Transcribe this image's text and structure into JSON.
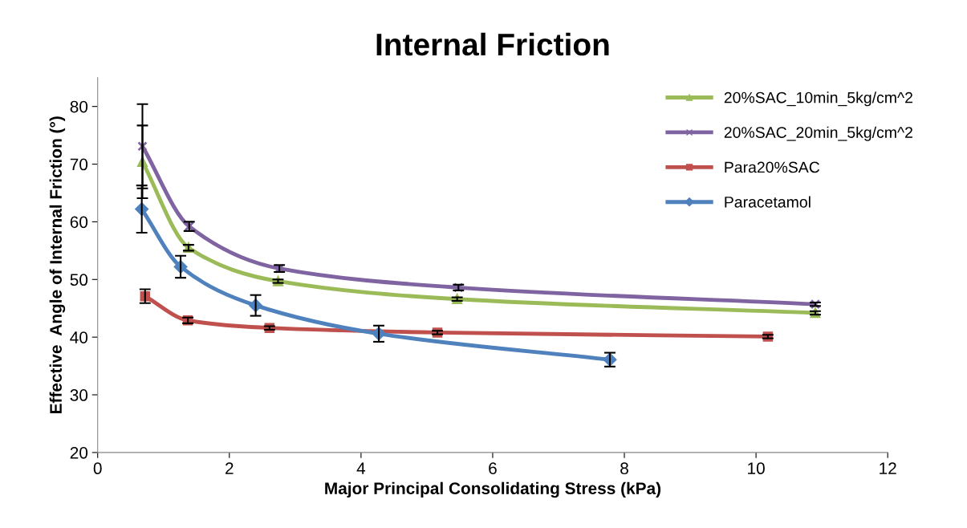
{
  "chart_data": {
    "type": "line",
    "title": "Internal Friction",
    "xlabel": "Major Principal Consolidating Stress (kPa)",
    "ylabel": "Effective  Angle of Internal Friction (°)",
    "xlim": [
      0,
      12
    ],
    "xticks": [
      0,
      2,
      4,
      6,
      8,
      10,
      12
    ],
    "ylim": [
      20,
      85
    ],
    "yticks": [
      20,
      30,
      40,
      50,
      60,
      70,
      80
    ],
    "grid": false,
    "legend": "top right",
    "line_style": "solid",
    "series": [
      {
        "name": "20%SAC_10min_5kg/cm^2",
        "color": "#9bbb59",
        "marker": "triangle",
        "x": [
          0.68,
          1.38,
          2.74,
          5.46,
          10.9
        ],
        "values": [
          70.4,
          55.5,
          49.7,
          46.6,
          44.2
        ],
        "errors": [
          6.3,
          0.5,
          0.3,
          0.3,
          0.3
        ]
      },
      {
        "name": "20%SAC_20min_5kg/cm^2",
        "color": "#8064a2",
        "marker": "cross",
        "x": [
          0.68,
          1.39,
          2.76,
          5.48,
          10.9
        ],
        "values": [
          73.1,
          59.2,
          51.9,
          48.6,
          45.7
        ],
        "errors": [
          7.3,
          0.8,
          0.6,
          0.5,
          0.3
        ]
      },
      {
        "name": "Para20%SAC",
        "color": "#c0504d",
        "marker": "square",
        "x": [
          0.72,
          1.37,
          2.61,
          5.16,
          10.18
        ],
        "values": [
          47.1,
          42.9,
          41.6,
          40.8,
          40.1
        ],
        "errors": [
          1.2,
          0.5,
          0.3,
          0.3,
          0.3
        ]
      },
      {
        "name": "Paracetamol",
        "color": "#4f81bd",
        "marker": "diamond",
        "x": [
          0.67,
          1.26,
          2.4,
          4.27,
          7.78
        ],
        "values": [
          62.2,
          52.2,
          45.5,
          40.6,
          36.1
        ],
        "errors": [
          4.1,
          1.9,
          1.8,
          1.4,
          1.2
        ]
      }
    ]
  }
}
